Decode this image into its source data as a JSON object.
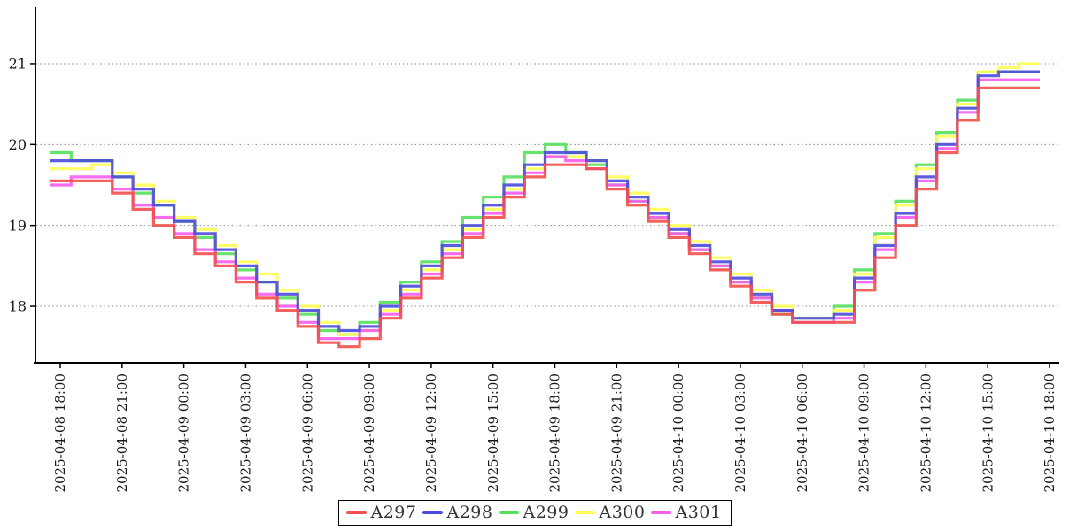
{
  "chart_data": {
    "type": "line",
    "step_mode": "post",
    "title": "",
    "xlabel": "",
    "ylabel": "",
    "grid": "horizontal-dotted",
    "legend_position": "bottom-center",
    "x_start": "2025-04-08 18:00",
    "x_interval_minutes": 60,
    "x_tick_hours": [
      0,
      3,
      6,
      9,
      12,
      15,
      18,
      21,
      24,
      27,
      30,
      33,
      36,
      39,
      42,
      45,
      48
    ],
    "x_tick_labels": [
      "2025-04-08 18:00",
      "2025-04-08 21:00",
      "2025-04-09 00:00",
      "2025-04-09 03:00",
      "2025-04-09 06:00",
      "2025-04-09 09:00",
      "2025-04-09 12:00",
      "2025-04-09 15:00",
      "2025-04-09 18:00",
      "2025-04-09 21:00",
      "2025-04-10 00:00",
      "2025-04-10 03:00",
      "2025-04-10 06:00",
      "2025-04-10 09:00",
      "2025-04-10 12:00",
      "2025-04-10 15:00",
      "2025-04-10 18:00"
    ],
    "y_ticks": [
      18,
      19,
      20,
      21
    ],
    "ylim": [
      17.3,
      21.7
    ],
    "colors": {
      "axis": "#000000",
      "grid": "#888888",
      "tick_text": "#1a1a1a",
      "legend_text": "#333333"
    },
    "draw_order": [
      "A299",
      "A300",
      "A301",
      "A298",
      "A297"
    ],
    "series": [
      {
        "name": "A297",
        "color": "#f2504e",
        "values": [
          19.55,
          19.55,
          19.55,
          19.4,
          19.2,
          19.0,
          18.85,
          18.65,
          18.5,
          18.3,
          18.1,
          17.95,
          17.75,
          17.55,
          17.5,
          17.6,
          17.85,
          18.1,
          18.35,
          18.6,
          18.85,
          19.1,
          19.35,
          19.6,
          19.75,
          19.75,
          19.7,
          19.45,
          19.25,
          19.05,
          18.85,
          18.65,
          18.45,
          18.25,
          18.05,
          17.9,
          17.8,
          17.8,
          17.8,
          18.2,
          18.6,
          19.0,
          19.45,
          19.9,
          20.3,
          20.7,
          20.7,
          20.7
        ]
      },
      {
        "name": "A298",
        "color": "#4b4bdc",
        "values": [
          19.8,
          19.8,
          19.8,
          19.6,
          19.45,
          19.25,
          19.05,
          18.9,
          18.7,
          18.5,
          18.3,
          18.15,
          17.95,
          17.75,
          17.7,
          17.75,
          18.0,
          18.25,
          18.5,
          18.75,
          19.0,
          19.25,
          19.5,
          19.75,
          19.9,
          19.9,
          19.8,
          19.55,
          19.35,
          19.15,
          18.95,
          18.75,
          18.55,
          18.35,
          18.15,
          17.95,
          17.85,
          17.85,
          17.9,
          18.35,
          18.75,
          19.15,
          19.6,
          20.0,
          20.45,
          20.85,
          20.9,
          20.9
        ]
      },
      {
        "name": "A299",
        "color": "#55e05c",
        "values": [
          19.9,
          19.8,
          19.8,
          19.6,
          19.4,
          19.25,
          19.05,
          18.85,
          18.65,
          18.45,
          18.3,
          18.1,
          17.9,
          17.7,
          17.65,
          17.8,
          18.05,
          18.3,
          18.55,
          18.8,
          19.1,
          19.35,
          19.6,
          19.9,
          20.0,
          19.9,
          19.75,
          19.5,
          19.3,
          19.1,
          18.9,
          18.7,
          18.5,
          18.3,
          18.1,
          17.9,
          17.85,
          17.85,
          18.0,
          18.45,
          18.9,
          19.3,
          19.75,
          20.15,
          20.55,
          20.9,
          20.9,
          20.9
        ]
      },
      {
        "name": "A300",
        "color": "#ffff55",
        "values": [
          19.7,
          19.7,
          19.75,
          19.65,
          19.5,
          19.3,
          19.1,
          18.95,
          18.75,
          18.55,
          18.4,
          18.2,
          18.0,
          17.8,
          17.65,
          17.7,
          17.95,
          18.2,
          18.45,
          18.7,
          18.95,
          19.2,
          19.45,
          19.7,
          19.85,
          19.85,
          19.8,
          19.6,
          19.4,
          19.2,
          19.0,
          18.8,
          18.6,
          18.4,
          18.2,
          18.0,
          17.85,
          17.85,
          17.95,
          18.4,
          18.85,
          19.25,
          19.7,
          20.1,
          20.5,
          20.9,
          20.95,
          21.0
        ]
      },
      {
        "name": "A301",
        "color": "#f75cf0",
        "values": [
          19.5,
          19.6,
          19.6,
          19.45,
          19.25,
          19.1,
          18.9,
          18.7,
          18.55,
          18.35,
          18.15,
          18.0,
          17.8,
          17.6,
          17.6,
          17.7,
          17.9,
          18.15,
          18.4,
          18.65,
          18.9,
          19.15,
          19.4,
          19.65,
          19.85,
          19.8,
          19.7,
          19.5,
          19.3,
          19.1,
          18.9,
          18.7,
          18.5,
          18.3,
          18.1,
          17.95,
          17.8,
          17.8,
          17.85,
          18.3,
          18.7,
          19.1,
          19.55,
          19.95,
          20.4,
          20.8,
          20.8,
          20.8
        ]
      }
    ]
  }
}
